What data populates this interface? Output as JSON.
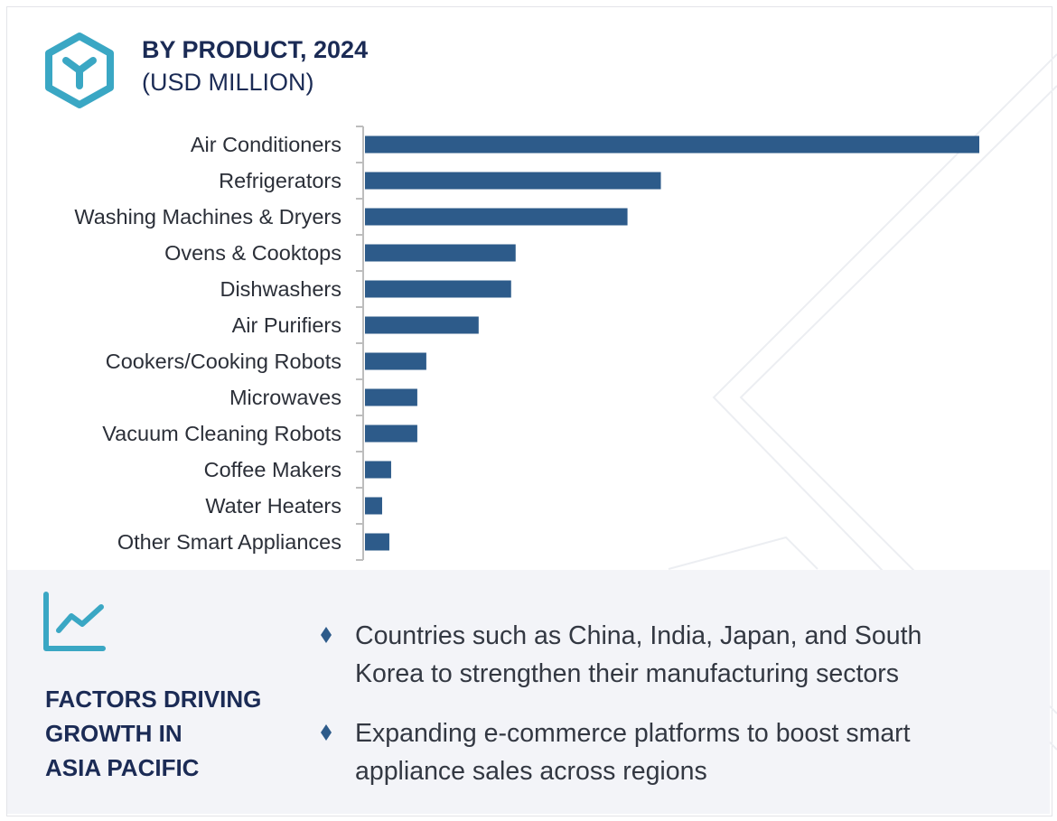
{
  "header": {
    "title": "BY PRODUCT, 2024",
    "subtitle": "(USD MILLION)",
    "logo_icon": "hexagon-y-icon"
  },
  "colors": {
    "bar": "#2d5b8a",
    "title": "#1b2b55",
    "accent": "#3aa7c4",
    "panel_bg": "#f3f4f8"
  },
  "chart_data": {
    "type": "bar",
    "orientation": "horizontal",
    "title": "BY PRODUCT, 2024",
    "subtitle": "(USD MILLION)",
    "categories": [
      "Air Conditioners",
      "Refrigerators",
      "Washing Machines & Dryers",
      "Ovens & Cooktops",
      "Dishwashers",
      "Air Purifiers",
      "Cookers/Cooking Robots",
      "Microwaves",
      "Vacuum Cleaning Robots",
      "Coffee Makers",
      "Water Heaters",
      "Other Smart Appliances"
    ],
    "values": [
      681,
      328,
      291,
      167,
      162,
      126,
      68,
      58,
      58,
      29,
      19,
      27
    ],
    "value_note_axis": "no value axis printed; values are relative estimates",
    "grid": false
  },
  "factors": {
    "icon": "line-chart-icon",
    "title_lines": [
      "FACTORS DRIVING",
      "GROWTH IN",
      "ASIA PACIFIC"
    ],
    "bullets": [
      "Countries such as China, India, Japan, and South Korea to strengthen their manufacturing sectors",
      "Expanding e-commerce platforms to boost smart appliance sales across regions"
    ]
  }
}
